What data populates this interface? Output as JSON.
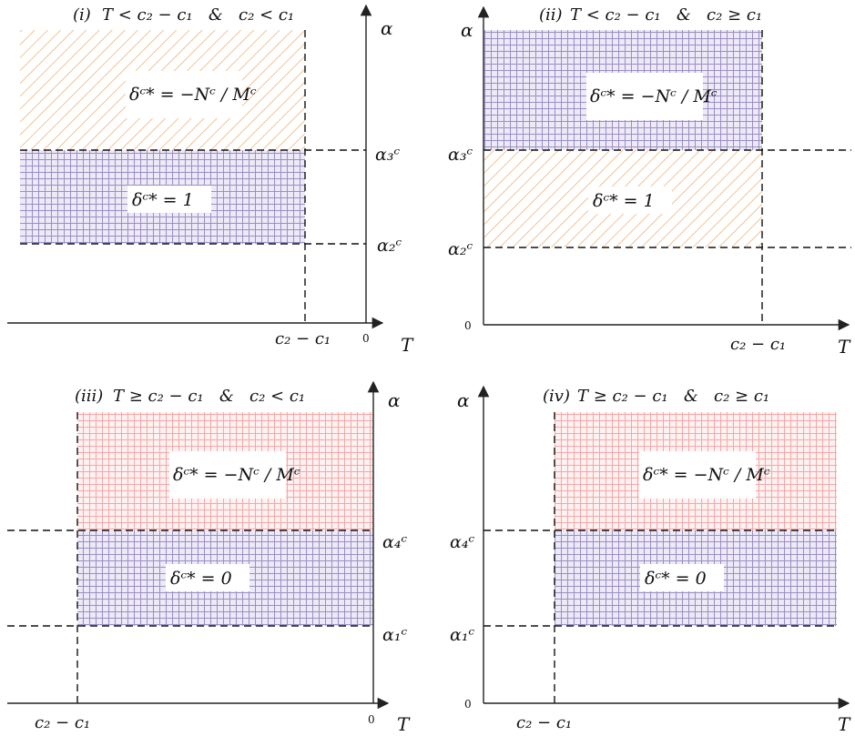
{
  "colors": {
    "purple_grid": "#9b8fc4",
    "purple_bg": "#ede9f6",
    "orange_hatch": "#f0b47a",
    "pink_grid": "#f4a8a8",
    "pink_bg": "#fdf1f1"
  },
  "panels": {
    "i": {
      "title_num": "(i)",
      "title_cond": "T < c₂ − c₁   &   c₂ < c₁",
      "y_axis": "α",
      "x_axis": "T",
      "origin": "0",
      "x_mark": "c₂ − c₁",
      "alpha_high": "α₃ᶜ",
      "alpha_low": "α₂ᶜ",
      "region_top": "δᶜ* = −Nᶜ / Mᶜ",
      "region_bottom": "δᶜ* = 1"
    },
    "ii": {
      "title_num": "(ii)",
      "title_cond": "T < c₂ − c₁   &   c₂ ≥ c₁",
      "y_axis": "α",
      "x_axis": "T",
      "origin": "0",
      "x_mark": "c₂ − c₁",
      "alpha_high": "α₃ᶜ",
      "alpha_low": "α₂ᶜ",
      "region_top": "δᶜ* = −Nᶜ / Mᶜ",
      "region_bottom": "δᶜ* = 1"
    },
    "iii": {
      "title_num": "(iii)",
      "title_cond": "T ≥ c₂ − c₁   &   c₂ < c₁",
      "y_axis": "α",
      "x_axis": "T",
      "origin": "0",
      "x_mark": "c₂ − c₁",
      "alpha_high": "α₄ᶜ",
      "alpha_low": "α₁ᶜ",
      "region_top": "δᶜ* = −Nᶜ / Mᶜ",
      "region_bottom": "δᶜ* = 0"
    },
    "iv": {
      "title_num": "(iv)",
      "title_cond": "T ≥ c₂ − c₁   &   c₂ ≥ c₁",
      "y_axis": "α",
      "x_axis": "T",
      "origin": "0",
      "x_mark": "c₂ − c₁",
      "alpha_high": "α₄ᶜ",
      "alpha_low": "α₁ᶜ",
      "region_top": "δᶜ* = −Nᶜ / Mᶜ",
      "region_bottom": "δᶜ* = 0"
    }
  }
}
